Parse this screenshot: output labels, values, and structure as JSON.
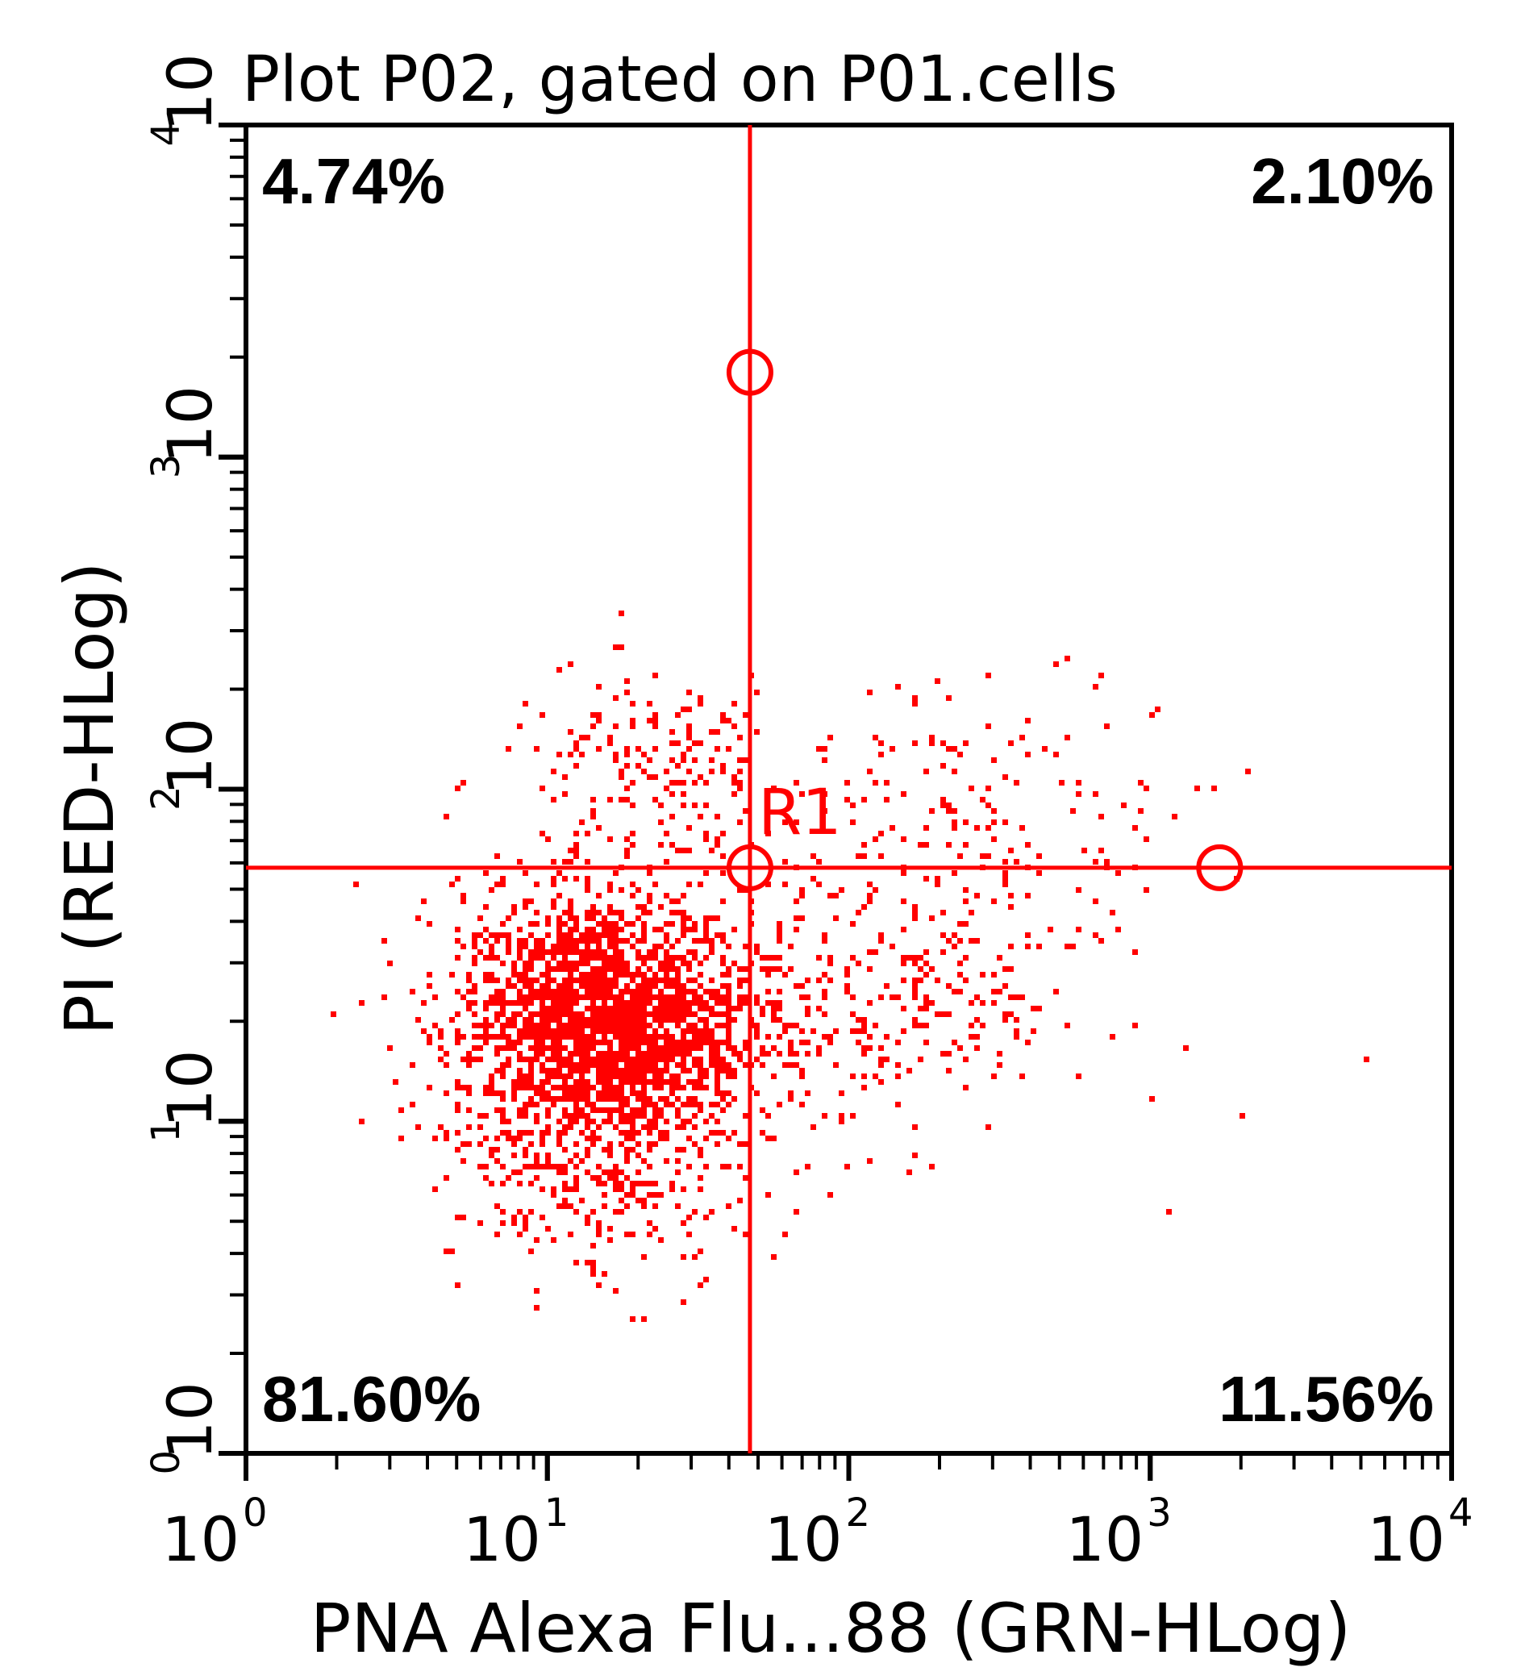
{
  "chart_data": {
    "type": "scatter",
    "title": "Plot P02, gated on P01.cells",
    "xlabel": "PNA Alexa Flu...88 (GRN-HLog)",
    "ylabel": "PI (RED-HLog)",
    "xscale": "log",
    "yscale": "log",
    "xlim": [
      1,
      10000
    ],
    "ylim": [
      1,
      10000
    ],
    "x_ticks": [
      {
        "base": "10",
        "exp": "0",
        "value": 1
      },
      {
        "base": "10",
        "exp": "1",
        "value": 10
      },
      {
        "base": "10",
        "exp": "2",
        "value": 100
      },
      {
        "base": "10",
        "exp": "3",
        "value": 1000
      },
      {
        "base": "10",
        "exp": "4",
        "value": 10000
      }
    ],
    "y_ticks": [
      {
        "base": "10",
        "exp": "0",
        "value": 1
      },
      {
        "base": "10",
        "exp": "1",
        "value": 10
      },
      {
        "base": "10",
        "exp": "2",
        "value": 100
      },
      {
        "base": "10",
        "exp": "3",
        "value": 1000
      },
      {
        "base": "10",
        "exp": "4",
        "value": 10000
      }
    ],
    "color": "#ff0000",
    "quadrant_gate": {
      "name": "R1",
      "x": 47,
      "y": 58,
      "handles": [
        [
          47,
          1800
        ],
        [
          47,
          58
        ],
        [
          1700,
          58
        ]
      ]
    },
    "quadrants": {
      "upper_left": "4.74%",
      "upper_right": "2.10%",
      "lower_left": "81.60%",
      "lower_right": "11.56%"
    },
    "event_distribution": [
      {
        "cx": 15,
        "cy": 20,
        "spread_x": 0.24,
        "spread_y": 0.2,
        "weight": 0.72
      },
      {
        "cx": 22,
        "cy": 120,
        "spread_x": 0.25,
        "spread_y": 0.14,
        "weight": 0.06
      },
      {
        "cx": 120,
        "cy": 25,
        "spread_x": 0.38,
        "spread_y": 0.22,
        "weight": 0.12
      },
      {
        "cx": 15,
        "cy": 6,
        "spread_x": 0.25,
        "spread_y": 0.15,
        "weight": 0.06
      },
      {
        "cx": 300,
        "cy": 100,
        "spread_x": 0.35,
        "spread_y": 0.18,
        "weight": 0.04
      }
    ],
    "event_count": 3000
  }
}
